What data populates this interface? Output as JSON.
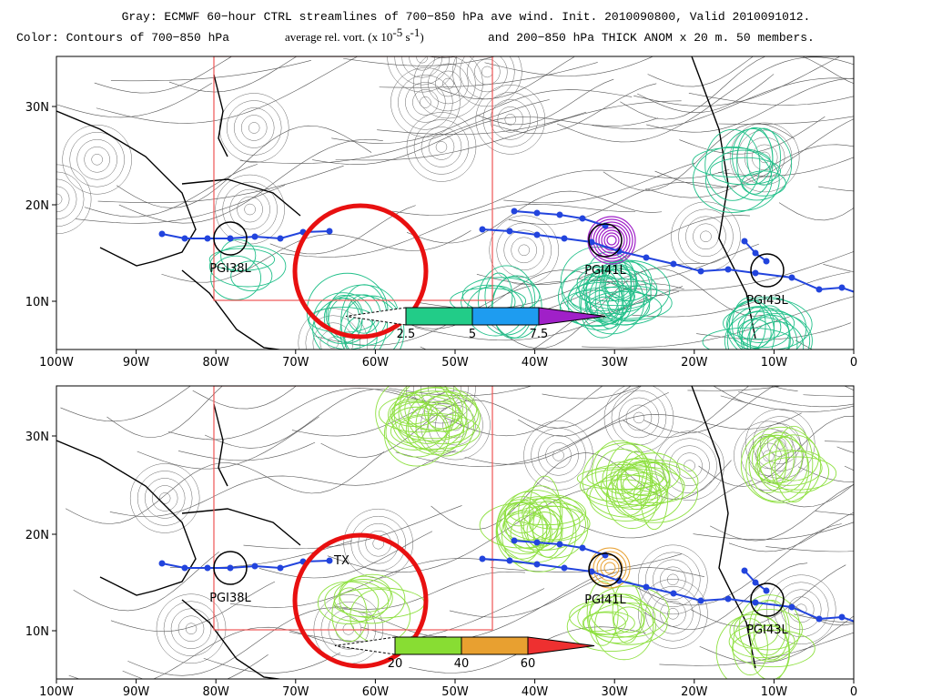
{
  "header": {
    "line1": "Gray: ECMWF 60−hour CTRL streamlines of 700−850 hPa ave wind.  Init. 2010090800, Valid 2010091012.",
    "line2": [
      "Color: Contours of 700−850 hPa",
      "average rel. vort. (x 10",
      "-5",
      " s",
      "-1",
      ")",
      "and 200−850 hPa THICK ANOM x 20 m.  50 members."
    ]
  },
  "axes": {
    "lat_labels": [
      "30N",
      "20N",
      "10N"
    ],
    "lon_labels": [
      "100W",
      "90W",
      "80W",
      "70W",
      "60W",
      "50W",
      "40W",
      "30W",
      "20W",
      "10W",
      "0"
    ]
  },
  "panels": [
    {
      "colorbar": {
        "labels": [
          "2.5",
          "5",
          "7.5"
        ],
        "colors": [
          "#22cc88",
          "#1e9cf0",
          "#a020c8"
        ]
      },
      "contour_color": "#22c08a",
      "storms": [
        "PGI38L",
        "PGI41L",
        "PGI43L"
      ]
    },
    {
      "colorbar": {
        "labels": [
          "20",
          "40",
          "60"
        ],
        "colors": [
          "#88dd33",
          "#e8a030",
          "#ee3030"
        ]
      },
      "contour_color": "#8ee040",
      "storms": [
        "PGI38L",
        "PGI41L",
        "PGI43L"
      ],
      "note": "TX"
    }
  ]
}
